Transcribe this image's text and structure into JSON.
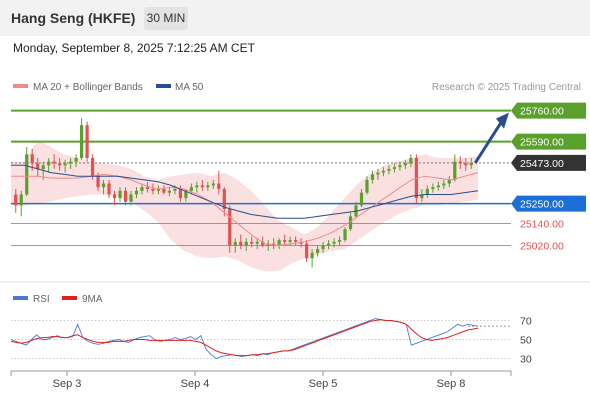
{
  "header": {
    "title": "Hang Seng (HKFE)",
    "timeframe": "30 MIN"
  },
  "datetime": "Monday, September 8, 2025 7:12:25 AM CET",
  "legend": {
    "bb": "MA 20 + Bollinger Bands",
    "ma50": "MA 50",
    "credit": "Research © 2025 Trading Central"
  },
  "rsi_legend": {
    "rsi": "RSI",
    "ma": "9MA"
  },
  "colors": {
    "bull": "#5aa02c",
    "bear": "#e35050",
    "blue": "#1d6fd8",
    "navy": "#2a4d8f",
    "band": "#f8d5d5",
    "pivot": "#333333"
  },
  "chart_data": [
    {
      "type": "line",
      "title": "",
      "series_candles": "30-minute candlesticks (ohlc)",
      "x_ticks": [
        "Sep 3",
        "Sep 4",
        "Sep 5",
        "Sep 8"
      ],
      "ylim": [
        24820,
        25840
      ],
      "levels": [
        {
          "value": 25760,
          "label": "25760.00",
          "kind": "resistance-target"
        },
        {
          "value": 25590,
          "label": "25590.00",
          "kind": "resistance"
        },
        {
          "value": 25473,
          "label": "25473.00",
          "kind": "pivot"
        },
        {
          "value": 25250,
          "label": "25250.00",
          "kind": "support-pivot"
        },
        {
          "value": 25140,
          "label": "25140.00",
          "kind": "support"
        },
        {
          "value": 25020,
          "label": "25020.00",
          "kind": "support"
        }
      ],
      "ohlc": [
        [
          25300,
          25330,
          25200,
          25240
        ],
        [
          25240,
          25320,
          25180,
          25300
        ],
        [
          25300,
          25560,
          25290,
          25520
        ],
        [
          25520,
          25550,
          25430,
          25470
        ],
        [
          25470,
          25500,
          25400,
          25440
        ],
        [
          25440,
          25480,
          25380,
          25460
        ],
        [
          25460,
          25500,
          25420,
          25480
        ],
        [
          25480,
          25520,
          25440,
          25470
        ],
        [
          25470,
          25500,
          25430,
          25460
        ],
        [
          25460,
          25490,
          25420,
          25470
        ],
        [
          25470,
          25500,
          25440,
          25480
        ],
        [
          25480,
          25520,
          25450,
          25500
        ],
        [
          25500,
          25720,
          25490,
          25680
        ],
        [
          25680,
          25700,
          25480,
          25500
        ],
        [
          25500,
          25520,
          25380,
          25400
        ],
        [
          25400,
          25420,
          25320,
          25340
        ],
        [
          25340,
          25380,
          25300,
          25360
        ],
        [
          25360,
          25380,
          25280,
          25300
        ],
        [
          25300,
          25320,
          25240,
          25280
        ],
        [
          25280,
          25340,
          25260,
          25320
        ],
        [
          25320,
          25340,
          25240,
          25260
        ],
        [
          25260,
          25320,
          25240,
          25300
        ],
        [
          25300,
          25340,
          25280,
          25320
        ],
        [
          25320,
          25360,
          25300,
          25340
        ],
        [
          25340,
          25370,
          25310,
          25330
        ],
        [
          25330,
          25360,
          25300,
          25320
        ],
        [
          25320,
          25350,
          25300,
          25330
        ],
        [
          25330,
          25350,
          25300,
          25310
        ],
        [
          25310,
          25340,
          25290,
          25320
        ],
        [
          25320,
          25350,
          25300,
          25330
        ],
        [
          25330,
          25350,
          25260,
          25280
        ],
        [
          25280,
          25330,
          25260,
          25320
        ],
        [
          25320,
          25360,
          25300,
          25340
        ],
        [
          25340,
          25370,
          25310,
          25350
        ],
        [
          25350,
          25380,
          25320,
          25340
        ],
        [
          25340,
          25370,
          25320,
          25350
        ],
        [
          25350,
          25380,
          25330,
          25360
        ],
        [
          25360,
          25430,
          25300,
          25330
        ],
        [
          25330,
          25340,
          25180,
          25220
        ],
        [
          25220,
          25240,
          24980,
          25020
        ],
        [
          25020,
          25060,
          24980,
          25040
        ],
        [
          25040,
          25080,
          25000,
          25020
        ],
        [
          25020,
          25060,
          24990,
          25040
        ],
        [
          25040,
          25070,
          25010,
          25030
        ],
        [
          25030,
          25060,
          25000,
          25040
        ],
        [
          25040,
          25070,
          25010,
          25020
        ],
        [
          25020,
          25050,
          24990,
          25030
        ],
        [
          25030,
          25060,
          25000,
          25020
        ],
        [
          25020,
          25060,
          25000,
          25050
        ],
        [
          25050,
          25080,
          25020,
          25040
        ],
        [
          25040,
          25070,
          25020,
          25050
        ],
        [
          25050,
          25070,
          25020,
          25040
        ],
        [
          25040,
          25060,
          25010,
          25030
        ],
        [
          25030,
          25050,
          24930,
          24950
        ],
        [
          24950,
          25000,
          24900,
          24980
        ],
        [
          24980,
          25020,
          24960,
          25000
        ],
        [
          25000,
          25040,
          24980,
          25020
        ],
        [
          25020,
          25050,
          25000,
          25030
        ],
        [
          25030,
          25060,
          25010,
          25040
        ],
        [
          25040,
          25070,
          25020,
          25050
        ],
        [
          25050,
          25120,
          25040,
          25110
        ],
        [
          25110,
          25200,
          25100,
          25180
        ],
        [
          25180,
          25260,
          25170,
          25240
        ],
        [
          25240,
          25330,
          25230,
          25310
        ],
        [
          25310,
          25400,
          25300,
          25380
        ],
        [
          25380,
          25430,
          25360,
          25410
        ],
        [
          25410,
          25440,
          25380,
          25420
        ],
        [
          25420,
          25450,
          25400,
          25430
        ],
        [
          25430,
          25460,
          25410,
          25440
        ],
        [
          25440,
          25470,
          25420,
          25450
        ],
        [
          25450,
          25480,
          25430,
          25460
        ],
        [
          25460,
          25490,
          25440,
          25470
        ],
        [
          25470,
          25520,
          25450,
          25500
        ],
        [
          25500,
          25520,
          25250,
          25280
        ],
        [
          25280,
          25330,
          25260,
          25300
        ],
        [
          25300,
          25350,
          25280,
          25330
        ],
        [
          25330,
          25360,
          25310,
          25340
        ],
        [
          25340,
          25370,
          25320,
          25350
        ],
        [
          25350,
          25380,
          25330,
          25360
        ],
        [
          25360,
          25400,
          25340,
          25380
        ],
        [
          25380,
          25520,
          25370,
          25480
        ],
        [
          25480,
          25510,
          25440,
          25470
        ],
        [
          25470,
          25500,
          25430,
          25460
        ],
        [
          25460,
          25500,
          25440,
          25473
        ]
      ],
      "ma20": [
        25400,
        25400,
        25400,
        25390,
        25390,
        25390,
        25400,
        25410,
        25400,
        25380,
        25350,
        25330,
        25340,
        25330,
        25300,
        25260,
        25200,
        25140,
        25080,
        25030,
        25020,
        25030,
        25040,
        25060,
        25090,
        25130,
        25180,
        25230,
        25280,
        25330,
        25380,
        25400,
        25390,
        25380,
        25400,
        25420
      ],
      "ma50": [
        25460,
        25460,
        25440,
        25420,
        25410,
        25400,
        25400,
        25400,
        25400,
        25390,
        25380,
        25370,
        25350,
        25320,
        25290,
        25260,
        25230,
        25210,
        25190,
        25180,
        25170,
        25170,
        25170,
        25180,
        25190,
        25200,
        25210,
        25230,
        25250,
        25270,
        25290,
        25300,
        25300,
        25300,
        25310,
        25320
      ],
      "bb_upper": [
        25480,
        25480,
        25600,
        25560,
        25520,
        25500,
        25480,
        25470,
        25460,
        25440,
        25400,
        25380,
        25400,
        25410,
        25420,
        25400,
        25420,
        25380,
        25320,
        25240,
        25160,
        25120,
        25080,
        25120,
        25200,
        25280,
        25360,
        25420,
        25460,
        25480,
        25500,
        25520,
        25500,
        25500,
        25500,
        25510
      ],
      "bb_lower": [
        25240,
        25240,
        25250,
        25260,
        25280,
        25290,
        25300,
        25300,
        25290,
        25260,
        25210,
        25150,
        25050,
        24990,
        24960,
        24950,
        24960,
        24940,
        24900,
        24880,
        24880,
        24920,
        24950,
        24970,
        24990,
        25000,
        25050,
        25100,
        25150,
        25190,
        25220,
        25240,
        25240,
        25250,
        25260,
        25270
      ]
    },
    {
      "type": "line",
      "title": "",
      "x_ticks": [
        "Sep 3",
        "Sep 4",
        "Sep 5",
        "Sep 8"
      ],
      "ylim": [
        20,
        80
      ],
      "y_ticks": [
        70,
        50,
        30
      ],
      "series": [
        {
          "name": "RSI",
          "values": [
            50,
            48,
            46,
            44,
            50,
            55,
            50,
            50,
            52,
            54,
            52,
            52,
            53,
            66,
            52,
            48,
            46,
            45,
            46,
            48,
            49,
            50,
            48,
            47,
            50,
            52,
            53,
            54,
            50,
            48,
            49,
            50,
            52,
            50,
            51,
            53,
            50,
            54,
            40,
            34,
            30,
            32,
            33,
            34,
            33,
            32,
            33,
            34,
            33,
            35,
            34,
            36,
            37,
            38,
            38,
            40,
            42,
            44,
            46,
            48,
            50,
            52,
            54,
            56,
            58,
            60,
            62,
            64,
            66,
            68,
            70,
            72,
            71,
            70,
            70,
            69,
            68,
            66,
            44,
            46,
            48,
            50,
            52,
            54,
            56,
            58,
            62,
            66,
            64,
            66,
            65,
            64
          ]
        },
        {
          "name": "9MA",
          "values": [
            48,
            47,
            46,
            47,
            49,
            51,
            52,
            52,
            53,
            53,
            52,
            52,
            54,
            55,
            52,
            50,
            48,
            47,
            47,
            47,
            48,
            48,
            48,
            49,
            50,
            50,
            50,
            49,
            49,
            49,
            49,
            49,
            49,
            49,
            49,
            49,
            48,
            47,
            44,
            41,
            38,
            36,
            35,
            34,
            33,
            33,
            33,
            34,
            34,
            35,
            35,
            36,
            37,
            38,
            38,
            39,
            41,
            43,
            45,
            47,
            49,
            51,
            53,
            55,
            57,
            59,
            61,
            63,
            65,
            67,
            69,
            70,
            71,
            70,
            70,
            69,
            68,
            66,
            61,
            56,
            52,
            50,
            49,
            50,
            51,
            52,
            54,
            56,
            58,
            60,
            61,
            62
          ]
        }
      ]
    }
  ]
}
